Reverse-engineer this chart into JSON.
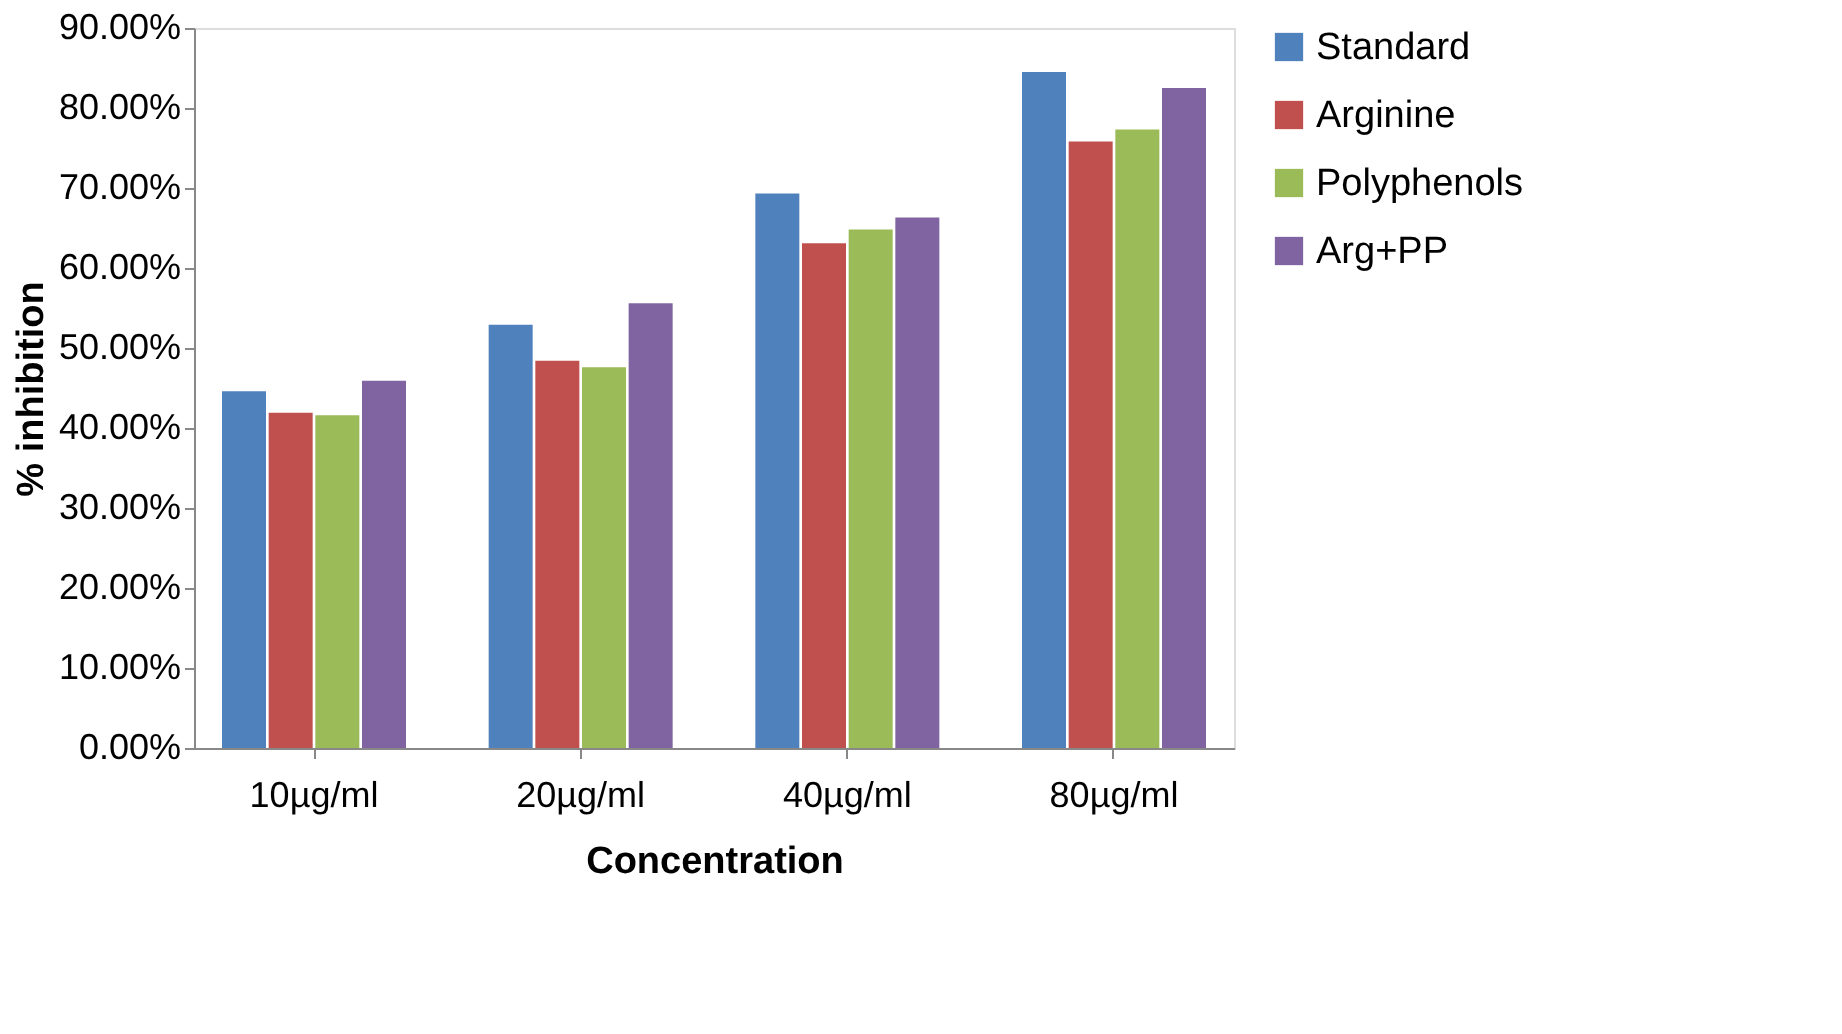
{
  "chart_data": {
    "type": "bar",
    "xlabel": "Concentration",
    "ylabel": "% inhibition",
    "categories": [
      "10µg/ml",
      "20µg/ml",
      "40µg/ml",
      "80µg/ml"
    ],
    "series": [
      {
        "name": "Standard",
        "color": "#4f81bd",
        "values": [
          44.6,
          52.9,
          69.3,
          84.5
        ]
      },
      {
        "name": "Arginine",
        "color": "#c0504d",
        "values": [
          41.9,
          48.4,
          63.1,
          75.8
        ]
      },
      {
        "name": "Polyphenols",
        "color": "#9bbb59",
        "values": [
          41.6,
          47.6,
          64.8,
          77.3
        ]
      },
      {
        "name": "Arg+PP",
        "color": "#8064a2",
        "values": [
          45.9,
          55.6,
          66.3,
          82.5
        ]
      }
    ],
    "ylim": [
      0,
      90
    ],
    "yticks": [
      {
        "value": 0,
        "label": "0.00%"
      },
      {
        "value": 10,
        "label": "10.00%"
      },
      {
        "value": 20,
        "label": "20.00%"
      },
      {
        "value": 30,
        "label": "30.00%"
      },
      {
        "value": 40,
        "label": "40.00%"
      },
      {
        "value": 50,
        "label": "50.00%"
      },
      {
        "value": 60,
        "label": "60.00%"
      },
      {
        "value": 70,
        "label": "70.00%"
      },
      {
        "value": 80,
        "label": "80.00%"
      },
      {
        "value": 90,
        "label": "90.00%"
      }
    ],
    "grid": false,
    "legend": "right"
  }
}
